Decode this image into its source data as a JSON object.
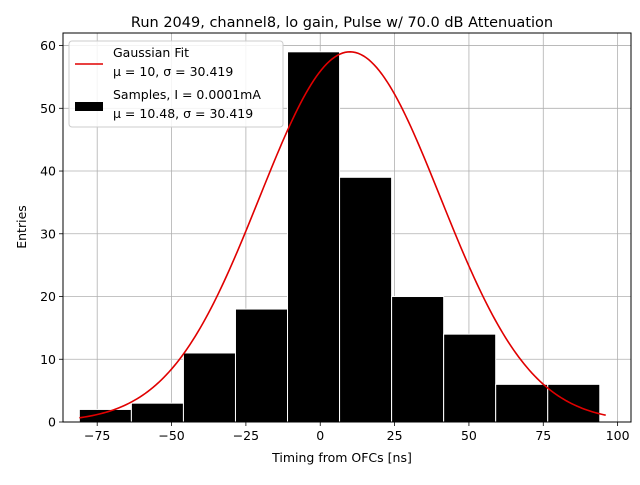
{
  "chart_data": {
    "type": "histogram",
    "title": "Run 2049, channel8, lo gain, Pulse w/ 70.0 dB Attenuation",
    "xlabel": "Timing from OFCs [ns]",
    "ylabel": "Entries",
    "xlim": [
      -86.5,
      104.5
    ],
    "ylim": [
      0,
      62
    ],
    "xticks": [
      -75,
      -50,
      -25,
      0,
      25,
      50,
      75,
      100
    ],
    "xtick_labels": [
      "−75",
      "−50",
      "−25",
      "0",
      "25",
      "50",
      "75",
      "100"
    ],
    "yticks": [
      0,
      10,
      20,
      30,
      40,
      50,
      60
    ],
    "ytick_labels": [
      "0",
      "10",
      "20",
      "30",
      "40",
      "50",
      "60"
    ],
    "grid": true,
    "legend_position": "top-left",
    "bins": [
      {
        "x0": -81.0,
        "x1": -63.5,
        "count": 2
      },
      {
        "x0": -63.5,
        "x1": -46.0,
        "count": 3
      },
      {
        "x0": -46.0,
        "x1": -28.5,
        "count": 11
      },
      {
        "x0": -28.5,
        "x1": -11.0,
        "count": 18
      },
      {
        "x0": -11.0,
        "x1": 6.5,
        "count": 59
      },
      {
        "x0": 6.5,
        "x1": 24.0,
        "count": 39
      },
      {
        "x0": 24.0,
        "x1": 41.5,
        "count": 20
      },
      {
        "x0": 41.5,
        "x1": 59.0,
        "count": 14
      },
      {
        "x0": 59.0,
        "x1": 76.5,
        "count": 6
      },
      {
        "x0": 76.5,
        "x1": 94.0,
        "count": 6
      }
    ],
    "bar_color": "#000000",
    "bar_edge_color": "#ffffff",
    "fit": {
      "label": "Gaussian Fit",
      "stats_label": "μ = 10, σ = 30.419",
      "mu": 10,
      "sigma": 30.419,
      "amplitude": 59,
      "x_range": [
        -81,
        96
      ],
      "color": "#e00000"
    },
    "samples_legend": {
      "label": "Samples, I = 0.0001mA",
      "stats_label": "μ = 10.48, σ = 30.419"
    }
  }
}
